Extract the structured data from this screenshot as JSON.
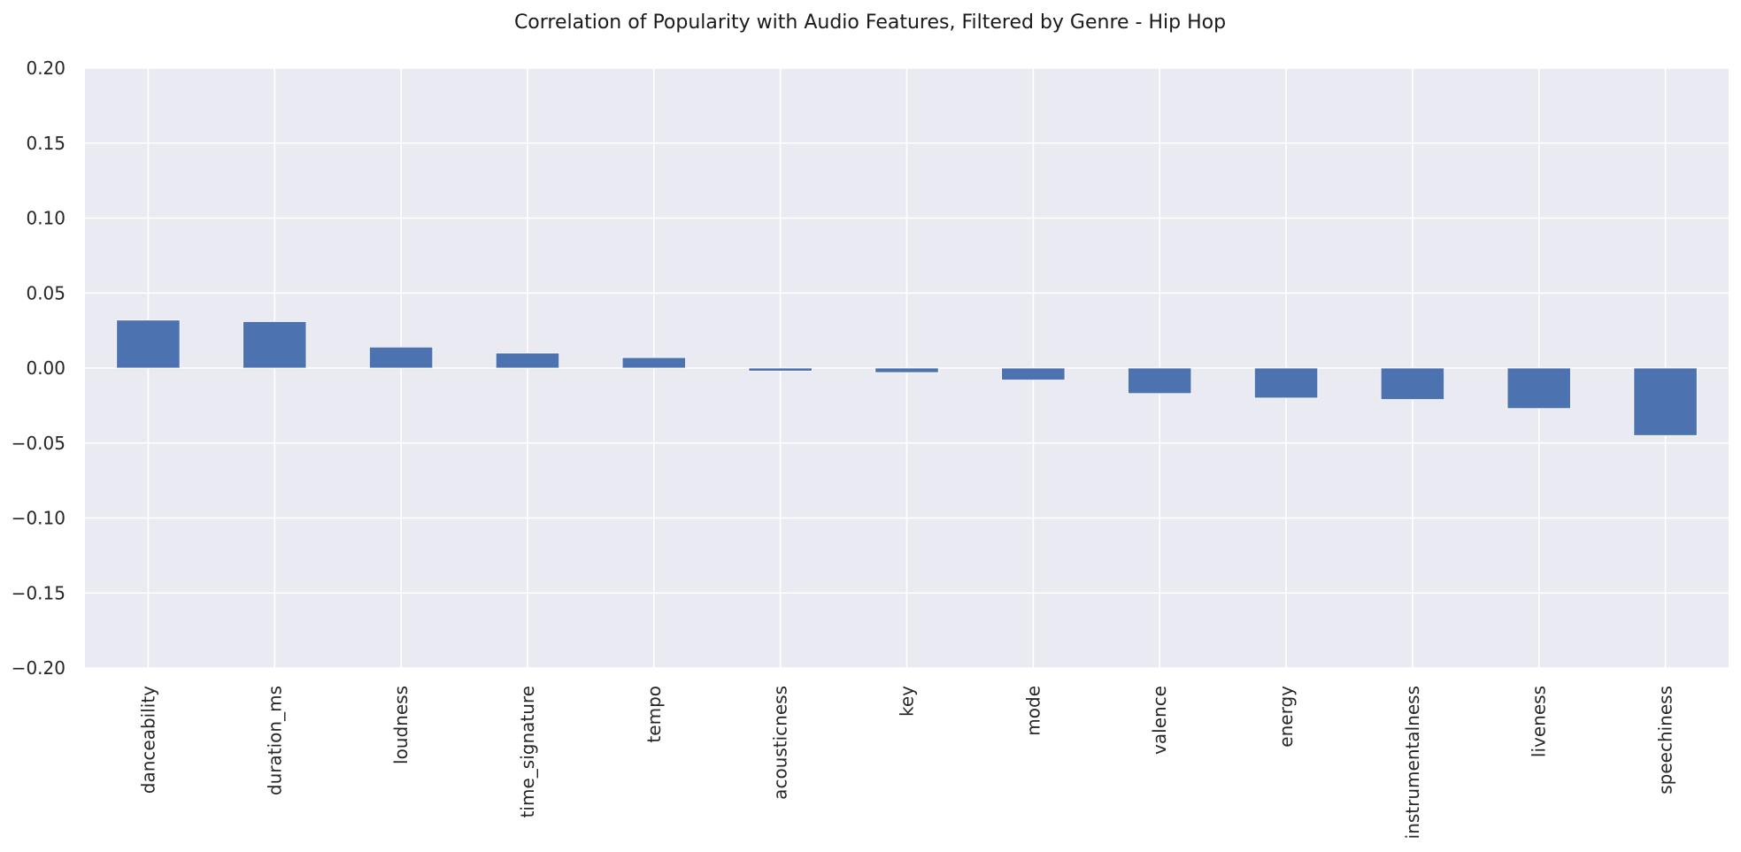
{
  "chart_data": {
    "type": "bar",
    "title": "Correlation of Popularity with Audio Features, Filtered by Genre - Hip Hop",
    "xlabel": "",
    "ylabel": "",
    "categories": [
      "danceability",
      "duration_ms",
      "loudness",
      "time_signature",
      "tempo",
      "acousticness",
      "key",
      "mode",
      "valence",
      "energy",
      "instrumentalness",
      "liveness",
      "speechiness"
    ],
    "values": [
      0.032,
      0.031,
      0.014,
      0.01,
      0.007,
      -0.002,
      -0.003,
      -0.008,
      -0.017,
      -0.02,
      -0.021,
      -0.027,
      -0.045
    ],
    "ylim": [
      -0.2,
      0.2
    ],
    "yticks": [
      "0.20",
      "0.15",
      "0.10",
      "0.05",
      "0.00",
      "−0.05",
      "−0.10",
      "−0.15",
      "−0.20"
    ],
    "ytick_values": [
      0.2,
      0.15,
      0.1,
      0.05,
      0.0,
      -0.05,
      -0.1,
      -0.15,
      -0.2
    ],
    "grid": true,
    "colors": {
      "bar": "#4c72b0",
      "background": "#eaeaf2",
      "grid": "#ffffff"
    }
  }
}
